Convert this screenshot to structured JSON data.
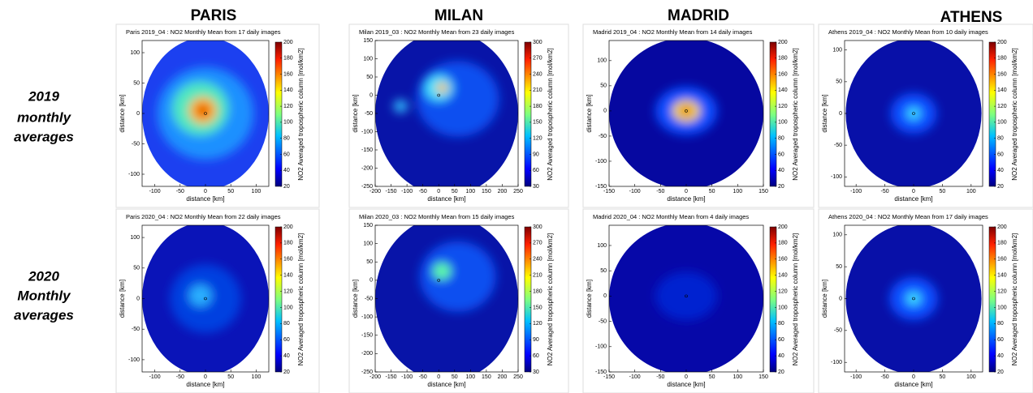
{
  "columns": [
    "PARIS",
    "MILAN",
    "MADRID",
    "ATHENS"
  ],
  "rows": [
    [
      "2019",
      "monthly",
      "averages"
    ],
    [
      "2020",
      "Monthly",
      "averages"
    ]
  ],
  "chart_data": [
    {
      "type": "heatmap",
      "title": "Paris 2019_04 : NO2 Monthly Mean from 17 daily images",
      "xlabel": "distance [km]",
      "ylabel": "distance [km]",
      "colorbar_label": "NO2 Averaged tropospheric column  [mol/km2]",
      "xlim": [
        -125,
        125
      ],
      "xticks": [
        -100,
        -50,
        0,
        50,
        100
      ],
      "ylim": [
        -120,
        120
      ],
      "yticks": [
        -100,
        -50,
        0,
        50,
        100
      ],
      "clim": [
        20,
        200
      ],
      "cticks": [
        20,
        40,
        60,
        80,
        100,
        120,
        140,
        160,
        180,
        200
      ]
    },
    {
      "type": "heatmap",
      "title": "Paris 2020_04 : NO2 Monthly Mean from 22 daily images",
      "xlabel": "distance [km]",
      "ylabel": "distance [km]",
      "colorbar_label": "NO2 Averaged tropospheric column  [mol/km2]",
      "xlim": [
        -125,
        125
      ],
      "xticks": [
        -100,
        -50,
        0,
        50,
        100
      ],
      "ylim": [
        -120,
        120
      ],
      "yticks": [
        -100,
        -50,
        0,
        50,
        100
      ],
      "clim": [
        20,
        200
      ],
      "cticks": [
        20,
        40,
        60,
        80,
        100,
        120,
        140,
        160,
        180,
        200
      ]
    },
    {
      "type": "heatmap",
      "title": "Milan 2019_03 : NO2 Monthly Mean from 23 daily images",
      "xlabel": "distance [km]",
      "ylabel": "distance [km]",
      "colorbar_label": "NO2 Averaged tropospheric column  [mol/km2]",
      "xlim": [
        -200,
        250
      ],
      "xticks": [
        -200,
        -150,
        -100,
        -50,
        0,
        50,
        100,
        150,
        200,
        250
      ],
      "ylim": [
        -250,
        150
      ],
      "yticks": [
        -250,
        -200,
        -150,
        -100,
        -50,
        0,
        50,
        100,
        150
      ],
      "clim": [
        30,
        300
      ],
      "cticks": [
        30,
        60,
        90,
        120,
        150,
        180,
        210,
        240,
        270,
        300
      ]
    },
    {
      "type": "heatmap",
      "title": "Milan 2020_03 : NO2 Monthly Mean from 15 daily images",
      "xlabel": "distance [km]",
      "ylabel": "distance [km]",
      "colorbar_label": "NO2 Averaged tropospheric column  [mol/km2]",
      "xlim": [
        -200,
        250
      ],
      "xticks": [
        -200,
        -150,
        -100,
        -50,
        0,
        50,
        100,
        150,
        200,
        250
      ],
      "ylim": [
        -250,
        150
      ],
      "yticks": [
        -250,
        -200,
        -150,
        -100,
        -50,
        0,
        50,
        100,
        150
      ],
      "clim": [
        30,
        300
      ],
      "cticks": [
        30,
        60,
        90,
        120,
        150,
        180,
        210,
        240,
        270,
        300
      ]
    },
    {
      "type": "heatmap",
      "title": "Madrid 2019_04 : NO2 Monthly Mean from 14 daily images",
      "xlabel": "distance [km]",
      "ylabel": "distance [km]",
      "colorbar_label": "NO2 Averaged tropospheric column  [mol/km2]",
      "xlim": [
        -150,
        150
      ],
      "xticks": [
        -150,
        -100,
        -50,
        0,
        50,
        100,
        150
      ],
      "ylim": [
        -150,
        140
      ],
      "yticks": [
        -150,
        -100,
        -50,
        0,
        50,
        100
      ],
      "clim": [
        20,
        200
      ],
      "cticks": [
        20,
        40,
        60,
        80,
        100,
        120,
        140,
        160,
        180,
        200
      ]
    },
    {
      "type": "heatmap",
      "title": "Madrid 2020_04 : NO2 Monthly Mean from 4 daily images",
      "xlabel": "distance [km]",
      "ylabel": "distance [km]",
      "colorbar_label": "NO2 Averaged tropospheric column  [mol/km2]",
      "xlim": [
        -150,
        150
      ],
      "xticks": [
        -150,
        -100,
        -50,
        0,
        50,
        100,
        150
      ],
      "ylim": [
        -150,
        140
      ],
      "yticks": [
        -150,
        -100,
        -50,
        0,
        50,
        100
      ],
      "clim": [
        20,
        200
      ],
      "cticks": [
        20,
        40,
        60,
        80,
        100,
        120,
        140,
        160,
        180,
        200
      ]
    },
    {
      "type": "heatmap",
      "title": "Athens 2019_04 : NO2 Monthly Mean from 10 daily images",
      "xlabel": "distance [km]",
      "ylabel": "distance [km]",
      "colorbar_label": "NO2 Averaged tropospheric column  [mol/km2]",
      "xlim": [
        -120,
        120
      ],
      "xticks": [
        -100,
        -50,
        0,
        50,
        100
      ],
      "ylim": [
        -115,
        115
      ],
      "yticks": [
        -100,
        -50,
        0,
        50,
        100
      ],
      "clim": [
        20,
        200
      ],
      "cticks": [
        20,
        40,
        60,
        80,
        100,
        120,
        140,
        160,
        180,
        200
      ]
    },
    {
      "type": "heatmap",
      "title": "Athens 2020_04 : NO2 Monthly Mean from 17 daily images",
      "xlabel": "distance [km]",
      "ylabel": "distance [km]",
      "colorbar_label": "NO2 Averaged tropospheric column  [mol/km2]",
      "xlim": [
        -120,
        120
      ],
      "xticks": [
        -100,
        -50,
        0,
        50,
        100
      ],
      "ylim": [
        -115,
        115
      ],
      "yticks": [
        -100,
        -50,
        0,
        50,
        100
      ],
      "clim": [
        20,
        200
      ],
      "cticks": [
        20,
        40,
        60,
        80,
        100,
        120,
        140,
        160,
        180,
        200
      ]
    }
  ]
}
